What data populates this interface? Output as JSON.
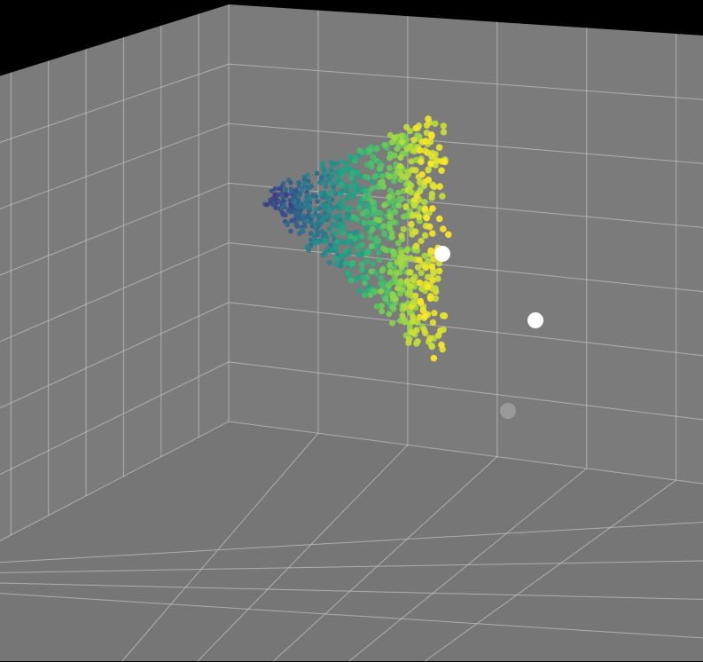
{
  "chart_data": {
    "type": "scatter3d",
    "title": "",
    "axis_labels": {
      "x": "",
      "y": "",
      "z": ""
    },
    "background_color": "#000000",
    "pane_color": "#7b7b7b",
    "grid_color": "#bdbdbd",
    "grid": true,
    "colormap": "viridis",
    "point_cloud": {
      "count": 900,
      "color_range": [
        "#3b3d86",
        "#2a788e",
        "#22a884",
        "#7ad151",
        "#fde725"
      ]
    },
    "highlight_points": [
      {
        "name": "marker-1",
        "color": "#ffffff"
      },
      {
        "name": "marker-2",
        "color": "#ffffff"
      },
      {
        "name": "marker-3",
        "color": "#9a9a9a"
      }
    ]
  }
}
